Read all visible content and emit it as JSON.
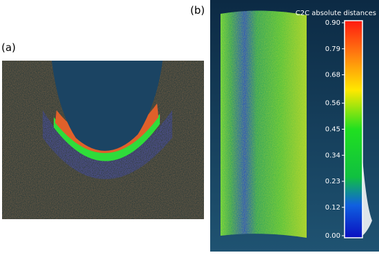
{
  "panels": [
    {
      "label": "(a)"
    },
    {
      "label": "(b)"
    }
  ],
  "colorbar": {
    "title": "C2C absolute distances",
    "ticks": [
      {
        "value": 0.9,
        "label": "0.90"
      },
      {
        "value": 0.79,
        "label": "0.79"
      },
      {
        "value": 0.68,
        "label": "0.68"
      },
      {
        "value": 0.56,
        "label": "0.56"
      },
      {
        "value": 0.45,
        "label": "0.45"
      },
      {
        "value": 0.34,
        "label": "0.34"
      },
      {
        "value": 0.23,
        "label": "0.23"
      },
      {
        "value": 0.12,
        "label": "0.12"
      },
      {
        "value": 0,
        "label": "0.00"
      }
    ]
  }
}
